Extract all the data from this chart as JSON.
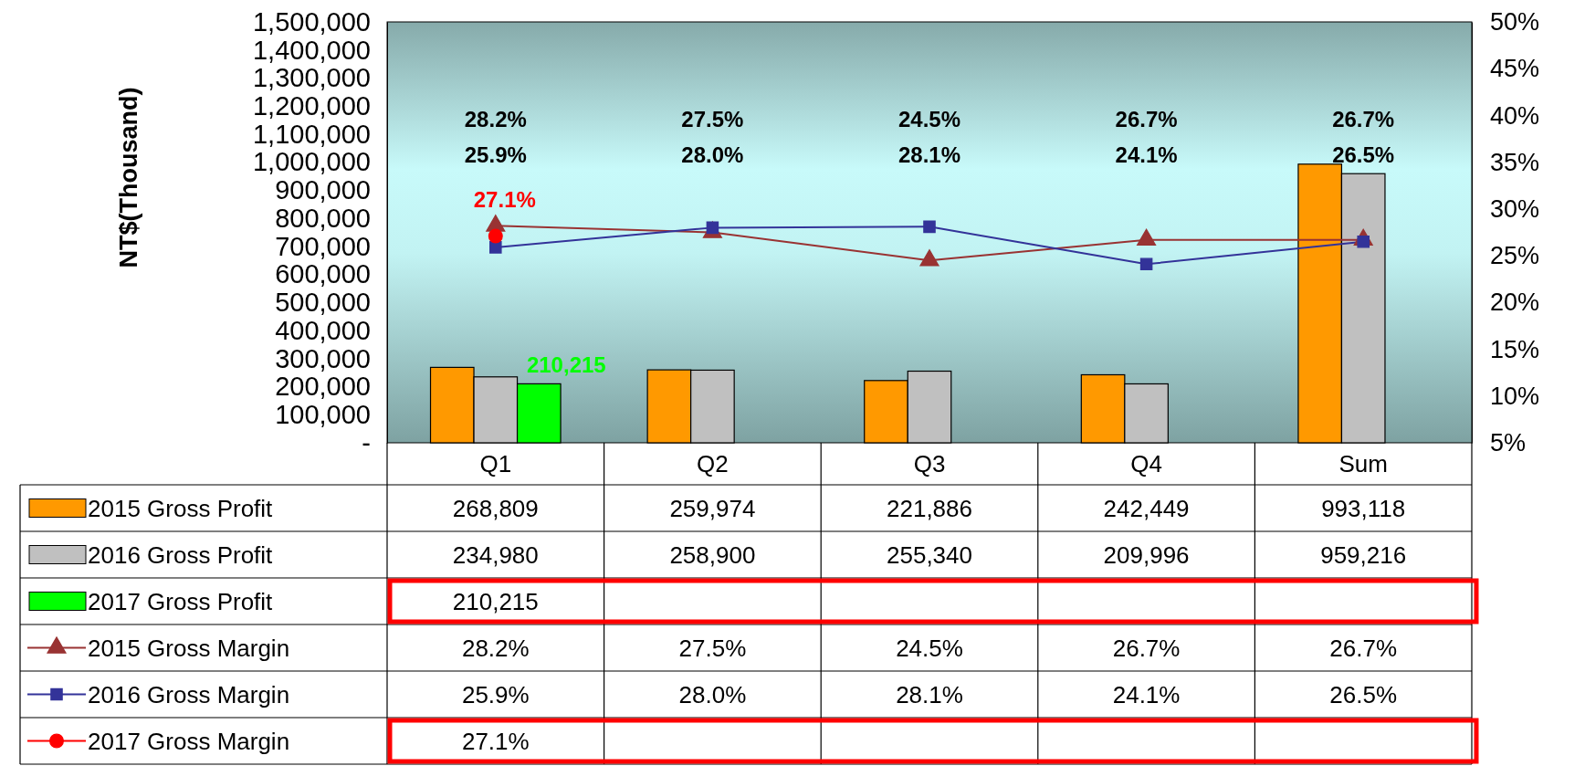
{
  "chart_data": {
    "type": "bar",
    "ylabel": "NT$(Thousand)",
    "categories": [
      "Q1",
      "Q2",
      "Q3",
      "Q4",
      "Sum"
    ],
    "ylim": [
      0,
      1500000
    ],
    "yticks": [
      {
        "value": 0,
        "label": "-"
      },
      {
        "value": 100000,
        "label": "100,000"
      },
      {
        "value": 200000,
        "label": "200,000"
      },
      {
        "value": 300000,
        "label": "300,000"
      },
      {
        "value": 400000,
        "label": "400,000"
      },
      {
        "value": 500000,
        "label": "500,000"
      },
      {
        "value": 600000,
        "label": "600,000"
      },
      {
        "value": 700000,
        "label": "700,000"
      },
      {
        "value": 800000,
        "label": "800,000"
      },
      {
        "value": 900000,
        "label": "900,000"
      },
      {
        "value": 1000000,
        "label": "1,000,000"
      },
      {
        "value": 1100000,
        "label": "1,100,000"
      },
      {
        "value": 1200000,
        "label": "1,200,000"
      },
      {
        "value": 1300000,
        "label": "1,300,000"
      },
      {
        "value": 1400000,
        "label": "1,400,000"
      },
      {
        "value": 1500000,
        "label": "1,500,000"
      }
    ],
    "y2lim": [
      5,
      50
    ],
    "y2ticks": [
      {
        "value": 5,
        "label": "5%"
      },
      {
        "value": 10,
        "label": "10%"
      },
      {
        "value": 15,
        "label": "15%"
      },
      {
        "value": 20,
        "label": "20%"
      },
      {
        "value": 25,
        "label": "25%"
      },
      {
        "value": 30,
        "label": "30%"
      },
      {
        "value": 35,
        "label": "35%"
      },
      {
        "value": 40,
        "label": "40%"
      },
      {
        "value": 45,
        "label": "45%"
      },
      {
        "value": 50,
        "label": "50%"
      }
    ],
    "legend": "bottom",
    "series": [
      {
        "name": "2015 Gross Profit",
        "type": "bar",
        "color": "#ff9900",
        "values": [
          268809,
          259974,
          221886,
          242449,
          993118
        ],
        "value_labels": [
          "268,809",
          "259,974",
          "221,886",
          "242,449",
          "993,118"
        ]
      },
      {
        "name": "2016 Gross Profit",
        "type": "bar",
        "color": "#c0c0c0",
        "values": [
          234980,
          258900,
          255340,
          209996,
          959216
        ],
        "value_labels": [
          "234,980",
          "258,900",
          "255,340",
          "209,996",
          "959,216"
        ]
      },
      {
        "name": "2017 Gross Profit",
        "type": "bar",
        "color": "#00ff00",
        "values": [
          210215,
          null,
          null,
          null,
          null
        ],
        "value_labels": [
          "210,215",
          null,
          null,
          null,
          null
        ]
      },
      {
        "name": "2015 Gross Margin",
        "type": "line",
        "axis": "y2",
        "color": "#993333",
        "marker": "triangle",
        "values": [
          28.2,
          27.5,
          24.5,
          26.7,
          26.7
        ],
        "value_labels": [
          "28.2%",
          "27.5%",
          "24.5%",
          "26.7%",
          "26.7%"
        ]
      },
      {
        "name": "2016 Gross Margin",
        "type": "line",
        "axis": "y2",
        "color": "#333399",
        "marker": "square",
        "values": [
          25.9,
          28.0,
          28.1,
          24.1,
          26.5
        ],
        "value_labels": [
          "25.9%",
          "28.0%",
          "28.1%",
          "24.1%",
          "26.5%"
        ]
      },
      {
        "name": "2017 Gross Margin",
        "type": "line",
        "axis": "y2",
        "color": "#ff0000",
        "marker": "circle",
        "values": [
          27.1,
          null,
          null,
          null,
          null
        ],
        "value_labels": [
          "27.1%",
          null,
          null,
          null,
          null
        ]
      }
    ]
  }
}
